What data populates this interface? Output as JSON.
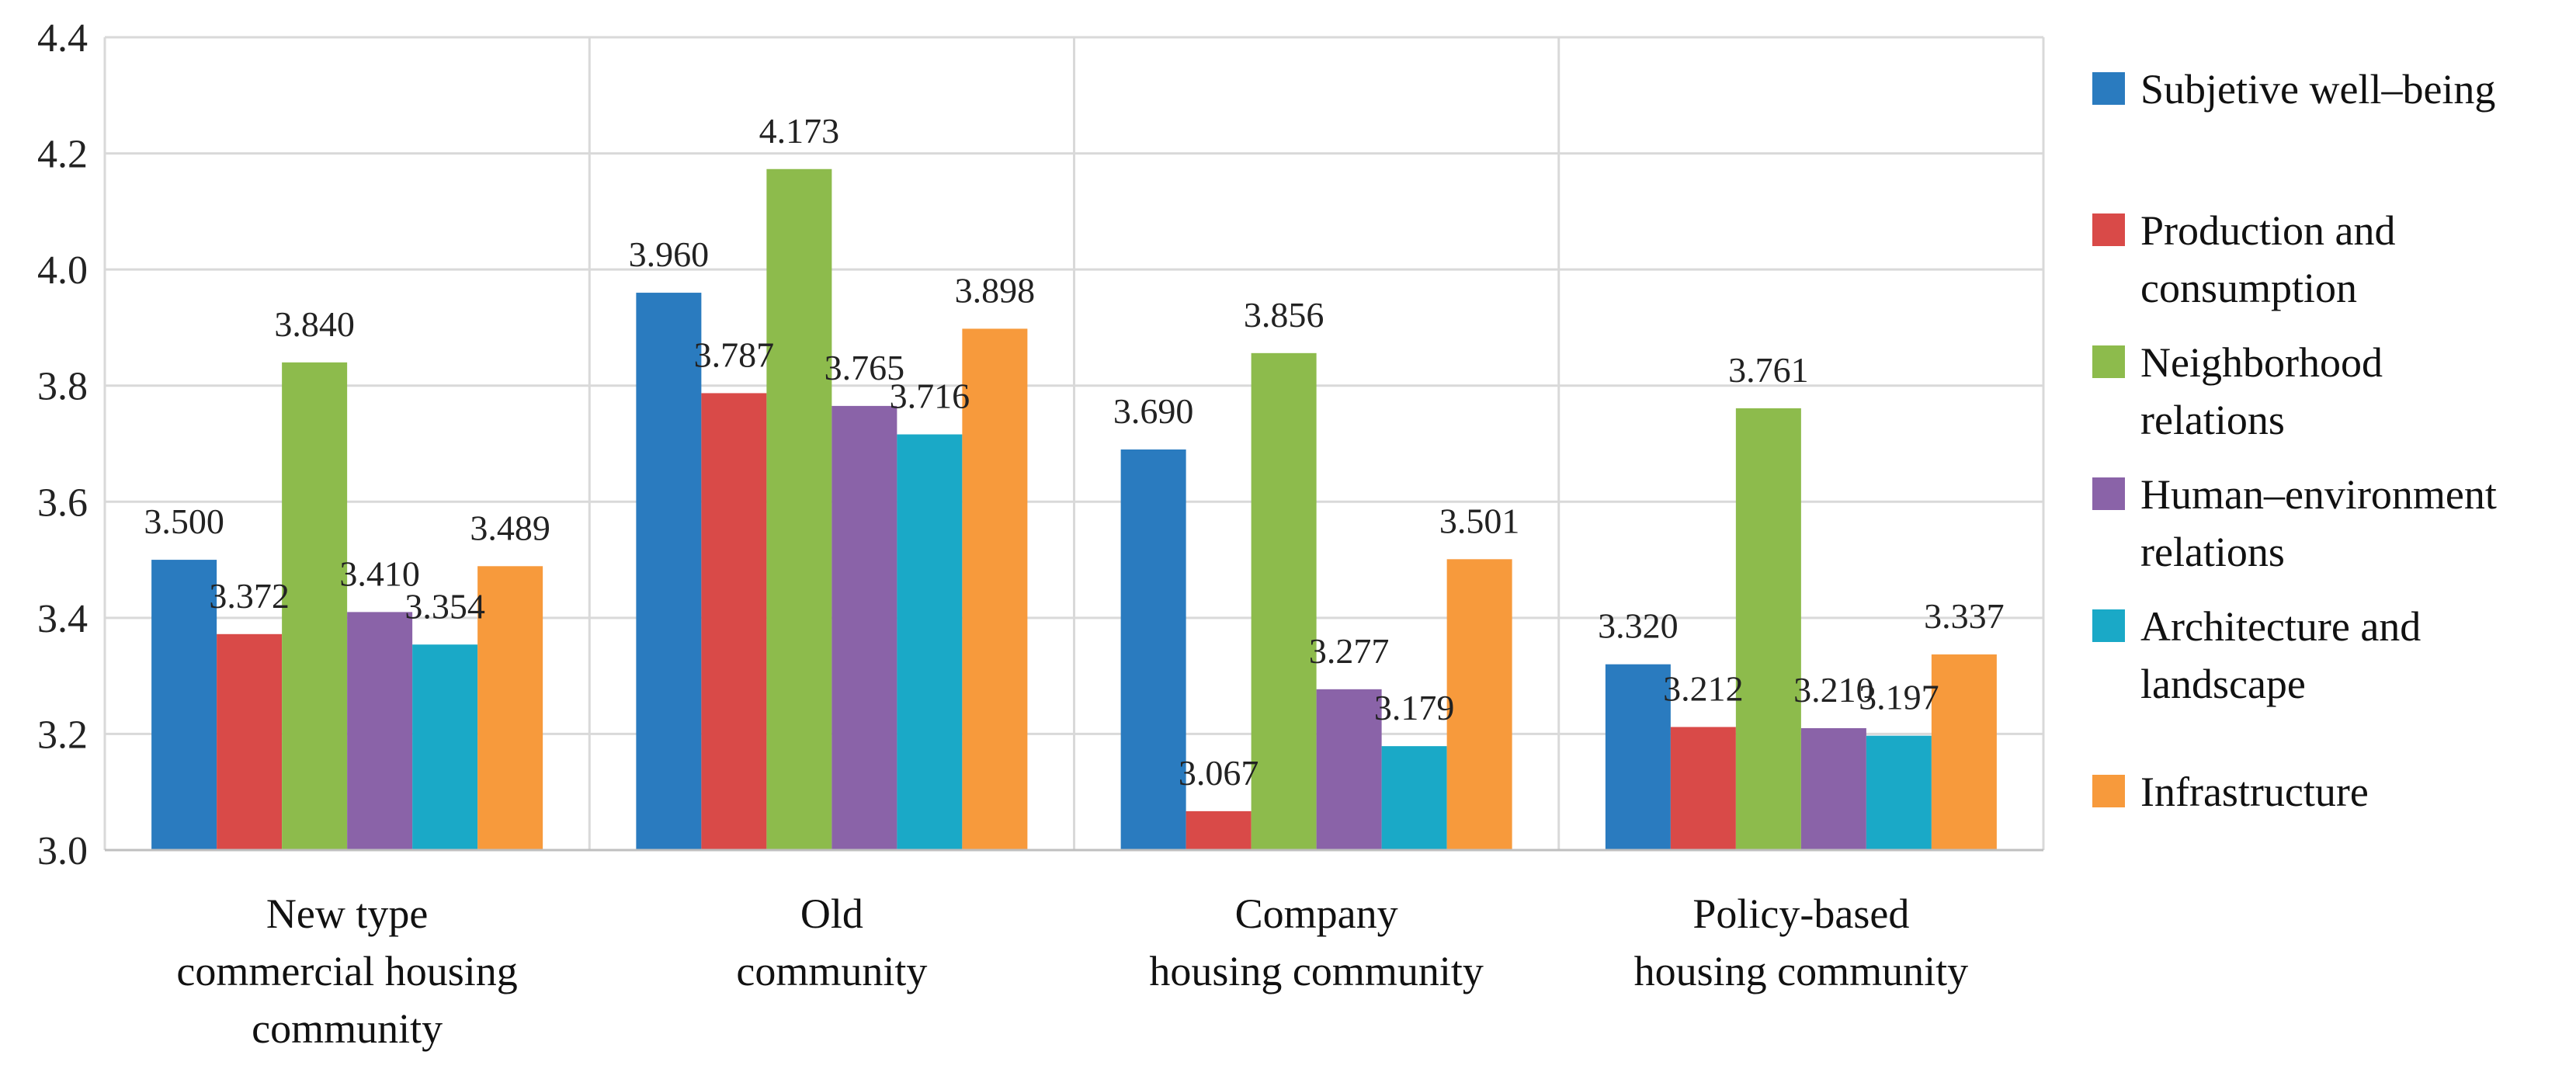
{
  "chart_data": {
    "type": "bar",
    "title": "",
    "xlabel": "",
    "ylabel": "",
    "ylim": [
      3.0,
      4.4
    ],
    "yticks": [
      "3.0",
      "3.2",
      "3.4",
      "3.6",
      "3.8",
      "4.0",
      "4.2",
      "4.4"
    ],
    "grid": true,
    "legend_position": "right",
    "categories": [
      [
        "New type",
        "commercial housing",
        "community"
      ],
      [
        "Old",
        "community"
      ],
      [
        "Company",
        "housing community"
      ],
      [
        "Policy-based",
        "housing community"
      ]
    ],
    "series": [
      {
        "name": [
          "Subjetive well–being"
        ],
        "color": "#2a7bbf",
        "values": [
          3.5,
          3.96,
          3.69,
          3.32
        ],
        "labels": [
          "3.500",
          "3.960",
          "3.690",
          "3.320"
        ]
      },
      {
        "name": [
          "Production and",
          "consumption"
        ],
        "color": "#d94a48",
        "values": [
          3.372,
          3.787,
          3.067,
          3.212
        ],
        "labels": [
          "3.372",
          "3.787",
          "3.067",
          "3.212"
        ]
      },
      {
        "name": [
          "Neighborhood",
          "relations"
        ],
        "color": "#8dbb4c",
        "values": [
          3.84,
          4.173,
          3.856,
          3.761
        ],
        "labels": [
          "3.840",
          "4.173",
          "3.856",
          "3.761"
        ]
      },
      {
        "name": [
          "Human–environment",
          "relations"
        ],
        "color": "#8a63a8",
        "values": [
          3.41,
          3.765,
          3.277,
          3.21
        ],
        "labels": [
          "3.410",
          "3.765",
          "3.277",
          "3.210"
        ]
      },
      {
        "name": [
          "Architecture and",
          "landscape"
        ],
        "color": "#1aa9c7",
        "values": [
          3.354,
          3.716,
          3.179,
          3.197
        ],
        "labels": [
          "3.354",
          "3.716",
          "3.179",
          "3.197"
        ]
      },
      {
        "name": [
          "Infrastructure"
        ],
        "color": "#f79a3c",
        "values": [
          3.489,
          3.898,
          3.501,
          3.337
        ],
        "labels": [
          "3.489",
          "3.898",
          "3.501",
          "3.337"
        ]
      }
    ]
  }
}
